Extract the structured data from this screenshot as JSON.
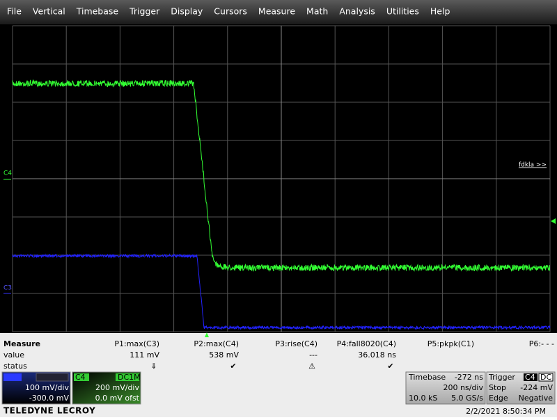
{
  "menu": [
    "File",
    "Vertical",
    "Timebase",
    "Trigger",
    "Display",
    "Cursors",
    "Measure",
    "Math",
    "Analysis",
    "Utilities",
    "Help"
  ],
  "grid_labels": {
    "c4": "C4",
    "c3": "C3",
    "zoom": "fdkla >>"
  },
  "measure": {
    "title": "Measure",
    "row_labels": [
      "value",
      "status"
    ],
    "params": [
      {
        "name": "P1:max(C3)",
        "value": "111 mV",
        "status": "⇓"
      },
      {
        "name": "P2:max(C4)",
        "value": "538 mV",
        "status": "✔"
      },
      {
        "name": "P3:rise(C4)",
        "value": "---",
        "status": "⚠"
      },
      {
        "name": "P4:fall8020(C4)",
        "value": "36.018 ns",
        "status": "✔"
      },
      {
        "name": "P5:pkpk(C1)"
      },
      {
        "name": "P6:- - -"
      }
    ]
  },
  "channels": [
    {
      "label": "C3",
      "vdiv": "100 mV/div",
      "offset": "-300.0 mV"
    },
    {
      "label": "C4",
      "coupling": "DC1M",
      "vdiv": "200 mV/div",
      "offset": "0.0 mV ofst"
    }
  ],
  "timebase": {
    "title": "Timebase",
    "delay": "-272 ns",
    "tdiv": "200 ns/div",
    "samples": "10.0 kS",
    "rate": "5.0 GS/s"
  },
  "trigger": {
    "title": "Trigger",
    "source": "C4",
    "coupling": "DC",
    "mode": "Stop",
    "level": "-224 mV",
    "type": "Edge",
    "slope": "Negative"
  },
  "footer": {
    "brand": "TELEDYNE LECROY",
    "timestamp": "2/2/2021 8:50:34 PM"
  }
}
